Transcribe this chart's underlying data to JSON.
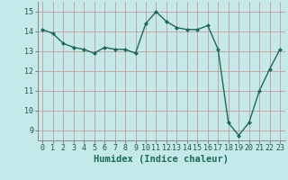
{
  "x": [
    0,
    1,
    2,
    3,
    4,
    5,
    6,
    7,
    8,
    9,
    10,
    11,
    12,
    13,
    14,
    15,
    16,
    17,
    18,
    19,
    20,
    21,
    22,
    23
  ],
  "y": [
    14.1,
    13.9,
    13.4,
    13.2,
    13.1,
    12.9,
    13.2,
    13.1,
    13.1,
    12.9,
    14.4,
    15.0,
    14.5,
    14.2,
    14.1,
    14.1,
    14.3,
    13.1,
    9.4,
    8.75,
    9.4,
    11.0,
    12.1,
    13.1
  ],
  "line_color": "#1a6b5a",
  "marker": "D",
  "marker_size": 2.0,
  "bg_color": "#c5e8e8",
  "grid_color": "#c89898",
  "xlabel": "Humidex (Indice chaleur)",
  "xlabel_fontsize": 7.5,
  "xlim": [
    -0.5,
    23.5
  ],
  "ylim": [
    8.5,
    15.5
  ],
  "yticks": [
    9,
    10,
    11,
    12,
    13,
    14,
    15
  ],
  "xticks": [
    0,
    1,
    2,
    3,
    4,
    5,
    6,
    7,
    8,
    9,
    10,
    11,
    12,
    13,
    14,
    15,
    16,
    17,
    18,
    19,
    20,
    21,
    22,
    23
  ],
  "tick_fontsize": 6.0,
  "line_width": 1.0
}
